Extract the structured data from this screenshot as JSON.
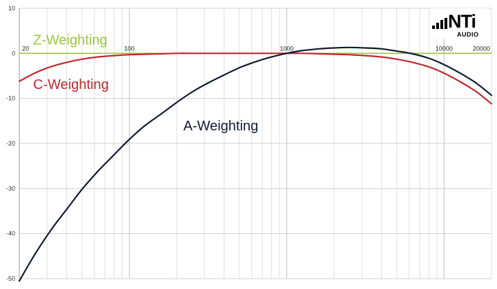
{
  "chart_data": {
    "type": "line",
    "title": "",
    "xlabel": "",
    "ylabel": "",
    "x_scale": "log",
    "xlim": [
      20,
      20000
    ],
    "ylim": [
      -50,
      10
    ],
    "grid": true,
    "x_ticks": [
      {
        "value": 20,
        "label": "20"
      },
      {
        "value": 100,
        "label": "100"
      },
      {
        "value": 1000,
        "label": "1000"
      },
      {
        "value": 10000,
        "label": "10000"
      },
      {
        "value": 20000,
        "label": "20000"
      }
    ],
    "y_ticks": [
      {
        "value": 10,
        "label": "10"
      },
      {
        "value": 0,
        "label": "0"
      },
      {
        "value": -10,
        "label": "-10"
      },
      {
        "value": -20,
        "label": "-20"
      },
      {
        "value": -30,
        "label": "-30"
      },
      {
        "value": -40,
        "label": "-40"
      },
      {
        "value": -50,
        "label": "-50"
      }
    ],
    "series": [
      {
        "name": "Z-Weighting",
        "color": "#9bc53d",
        "label_at": [
          20,
          3
        ],
        "x": [
          20,
          20000
        ],
        "y": [
          0,
          0
        ]
      },
      {
        "name": "C-Weighting",
        "color": "#c0282d",
        "label_at": [
          20,
          -6.8
        ],
        "x": [
          20,
          25,
          31.5,
          40,
          50,
          63,
          80,
          100,
          125,
          160,
          200,
          250,
          315,
          400,
          500,
          630,
          800,
          1000,
          1250,
          1600,
          2000,
          2500,
          3150,
          4000,
          5000,
          6300,
          8000,
          10000,
          12500,
          16000,
          20000
        ],
        "y": [
          -6.2,
          -4.4,
          -3.0,
          -2.0,
          -1.3,
          -0.8,
          -0.5,
          -0.3,
          -0.2,
          -0.1,
          0,
          0,
          0,
          0,
          0,
          0,
          0,
          0,
          0,
          -0.1,
          -0.2,
          -0.3,
          -0.5,
          -0.8,
          -1.3,
          -2.0,
          -3.0,
          -4.4,
          -6.2,
          -8.5,
          -11.2
        ]
      },
      {
        "name": "A-Weighting",
        "color": "#0f1a33",
        "label_at": [
          180,
          -16
        ],
        "x": [
          20,
          25,
          31.5,
          40,
          50,
          63,
          80,
          100,
          125,
          160,
          200,
          250,
          315,
          400,
          500,
          630,
          800,
          1000,
          1250,
          1600,
          2000,
          2500,
          3150,
          4000,
          5000,
          6300,
          8000,
          10000,
          12500,
          16000,
          20000
        ],
        "y": [
          -50.5,
          -44.7,
          -39.4,
          -34.6,
          -30.2,
          -26.2,
          -22.5,
          -19.1,
          -16.1,
          -13.4,
          -10.9,
          -8.6,
          -6.6,
          -4.8,
          -3.2,
          -1.9,
          -0.8,
          0,
          0.6,
          1.0,
          1.2,
          1.3,
          1.2,
          1.0,
          0.5,
          -0.1,
          -1.1,
          -2.5,
          -4.3,
          -6.6,
          -9.3
        ]
      }
    ]
  },
  "logo": {
    "brand": "NTi",
    "sub": "AUDIO"
  }
}
